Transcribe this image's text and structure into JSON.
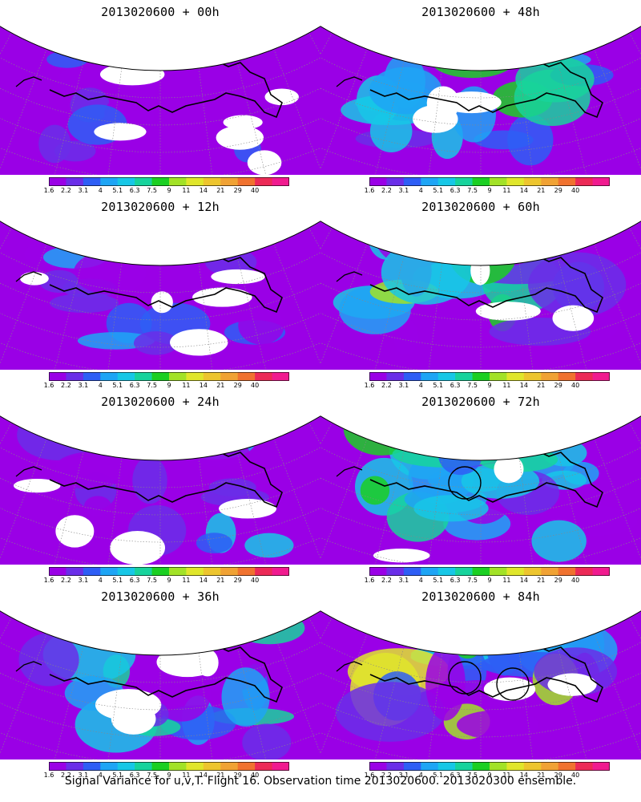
{
  "footer": "Signal Variance for u,v,T. Flight 16. Observation time 2013020600. 2013020300 ensemble.",
  "colorbar": {
    "labels": [
      "1.6",
      "2.2",
      "3.1",
      "4",
      "5.1",
      "6.3",
      "7.5",
      "9",
      "11",
      "14",
      "21",
      "29",
      "40"
    ],
    "colors": [
      "#9a00e6",
      "#6a2ee8",
      "#2e5ef5",
      "#1ea5f5",
      "#17c7e6",
      "#17d39c",
      "#1bcf22",
      "#a2e227",
      "#e0e62b",
      "#edc52e",
      "#f0a234",
      "#f0722f",
      "#ec2a57",
      "#f01b8f"
    ]
  },
  "panels": [
    {
      "title": "2013020600 + 00h",
      "level": 0.05,
      "circles": 0
    },
    {
      "title": "2013020600 + 48h",
      "level": 0.55,
      "circles": 0
    },
    {
      "title": "2013020600 + 12h",
      "level": 0.2,
      "circles": 0
    },
    {
      "title": "2013020600 + 60h",
      "level": 0.62,
      "circles": 0
    },
    {
      "title": "2013020600 + 24h",
      "level": 0.3,
      "circles": 0
    },
    {
      "title": "2013020600 + 72h",
      "level": 0.7,
      "circles": 1
    },
    {
      "title": "2013020600 + 36h",
      "level": 0.42,
      "circles": 0
    },
    {
      "title": "2013020600 + 84h",
      "level": 0.8,
      "circles": 2
    }
  ]
}
